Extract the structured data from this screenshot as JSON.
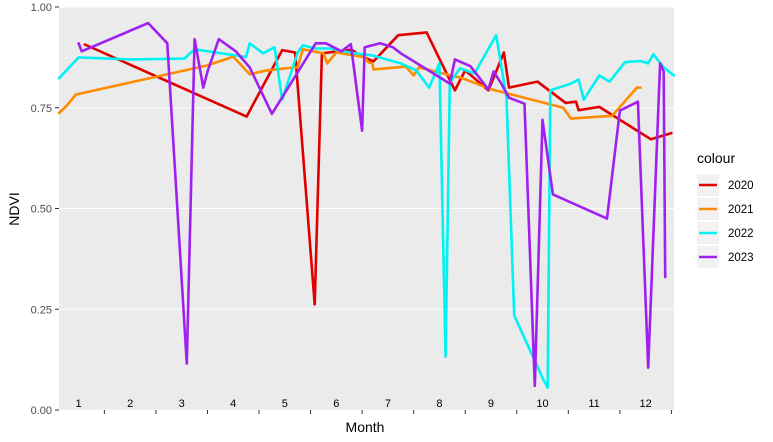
{
  "chart_data": {
    "type": "line",
    "xlabel": "Month",
    "ylabel": "NDVI",
    "ylim": [
      0,
      1
    ],
    "xlim": [
      0.62,
      12.55
    ],
    "y_ticks": [
      "0.00",
      "0.25",
      "0.50",
      "0.75",
      "1.00"
    ],
    "y_tick_values": [
      0,
      0.25,
      0.5,
      0.75,
      1.0
    ],
    "month_labels": [
      "1",
      "2",
      "3",
      "4",
      "5",
      "6",
      "7",
      "8",
      "9",
      "10",
      "11",
      "12"
    ],
    "legend_title": "colour",
    "grid": true,
    "legend_position": "right",
    "panel_background": "#ebebeb",
    "series": [
      {
        "name": "2020",
        "color": "#e00000",
        "points": [
          [
            1.12,
            0.907
          ],
          [
            4.26,
            0.728
          ],
          [
            4.95,
            0.893
          ],
          [
            5.2,
            0.887
          ],
          [
            5.58,
            0.262
          ],
          [
            5.72,
            0.885
          ],
          [
            6.3,
            0.894
          ],
          [
            6.45,
            0.88
          ],
          [
            6.72,
            0.865
          ],
          [
            7.2,
            0.93
          ],
          [
            7.75,
            0.937
          ],
          [
            8.3,
            0.793
          ],
          [
            8.5,
            0.843
          ],
          [
            8.95,
            0.793
          ],
          [
            9.25,
            0.887
          ],
          [
            9.35,
            0.8
          ],
          [
            9.9,
            0.815
          ],
          [
            10.45,
            0.762
          ],
          [
            10.65,
            0.765
          ],
          [
            10.7,
            0.744
          ],
          [
            11.1,
            0.752
          ],
          [
            12.1,
            0.672
          ],
          [
            12.5,
            0.687
          ]
        ]
      },
      {
        "name": "2021",
        "color": "#ff8c00",
        "points": [
          [
            0.62,
            0.737
          ],
          [
            0.77,
            0.755
          ],
          [
            0.95,
            0.783
          ],
          [
            3.5,
            0.855
          ],
          [
            4.0,
            0.877
          ],
          [
            4.32,
            0.833
          ],
          [
            4.62,
            0.842
          ],
          [
            5.25,
            0.851
          ],
          [
            5.35,
            0.895
          ],
          [
            5.75,
            0.885
          ],
          [
            5.82,
            0.86
          ],
          [
            6.0,
            0.887
          ],
          [
            6.55,
            0.875
          ],
          [
            6.62,
            0.863
          ],
          [
            6.7,
            0.86
          ],
          [
            6.72,
            0.845
          ],
          [
            7.35,
            0.852
          ],
          [
            7.5,
            0.83
          ],
          [
            7.6,
            0.85
          ],
          [
            8.45,
            0.823
          ],
          [
            9.0,
            0.796
          ],
          [
            10.4,
            0.75
          ],
          [
            10.55,
            0.723
          ],
          [
            11.35,
            0.73
          ],
          [
            11.83,
            0.8
          ],
          [
            11.9,
            0.8
          ]
        ]
      },
      {
        "name": "2022",
        "color": "#00f2f2",
        "points": [
          [
            0.62,
            0.823
          ],
          [
            1.0,
            0.875
          ],
          [
            2.0,
            0.87
          ],
          [
            3.05,
            0.872
          ],
          [
            3.25,
            0.895
          ],
          [
            4.25,
            0.876
          ],
          [
            4.32,
            0.91
          ],
          [
            4.58,
            0.885
          ],
          [
            4.8,
            0.9
          ],
          [
            4.95,
            0.77
          ],
          [
            5.25,
            0.887
          ],
          [
            5.35,
            0.905
          ],
          [
            5.6,
            0.897
          ],
          [
            5.88,
            0.897
          ],
          [
            6.3,
            0.886
          ],
          [
            6.7,
            0.88
          ],
          [
            7.25,
            0.86
          ],
          [
            7.55,
            0.843
          ],
          [
            7.8,
            0.8
          ],
          [
            8.0,
            0.86
          ],
          [
            8.12,
            0.133
          ],
          [
            8.2,
            0.812
          ],
          [
            8.4,
            0.848
          ],
          [
            8.68,
            0.835
          ],
          [
            9.1,
            0.93
          ],
          [
            9.3,
            0.775
          ],
          [
            9.45,
            0.235
          ],
          [
            10.0,
            0.08
          ],
          [
            10.1,
            0.055
          ],
          [
            10.15,
            0.793
          ],
          [
            10.55,
            0.81
          ],
          [
            10.7,
            0.82
          ],
          [
            10.8,
            0.77
          ],
          [
            11.1,
            0.83
          ],
          [
            11.3,
            0.815
          ],
          [
            11.6,
            0.863
          ],
          [
            11.9,
            0.866
          ],
          [
            12.05,
            0.86
          ],
          [
            12.15,
            0.883
          ],
          [
            12.35,
            0.85
          ],
          [
            12.55,
            0.83
          ]
        ]
      },
      {
        "name": "2023",
        "color": "#a020f0",
        "points": [
          [
            1.0,
            0.91
          ],
          [
            1.06,
            0.89
          ],
          [
            2.35,
            0.96
          ],
          [
            2.72,
            0.91
          ],
          [
            3.1,
            0.115
          ],
          [
            3.25,
            0.92
          ],
          [
            3.42,
            0.8
          ],
          [
            3.5,
            0.84
          ],
          [
            3.72,
            0.92
          ],
          [
            4.05,
            0.89
          ],
          [
            4.32,
            0.85
          ],
          [
            4.75,
            0.735
          ],
          [
            5.6,
            0.91
          ],
          [
            5.8,
            0.91
          ],
          [
            6.1,
            0.89
          ],
          [
            6.28,
            0.908
          ],
          [
            6.5,
            0.693
          ],
          [
            6.55,
            0.9
          ],
          [
            6.85,
            0.91
          ],
          [
            7.1,
            0.9
          ],
          [
            7.25,
            0.885
          ],
          [
            8.2,
            0.81
          ],
          [
            8.3,
            0.87
          ],
          [
            8.6,
            0.853
          ],
          [
            8.95,
            0.795
          ],
          [
            9.05,
            0.84
          ],
          [
            9.2,
            0.81
          ],
          [
            9.35,
            0.775
          ],
          [
            9.65,
            0.76
          ],
          [
            9.85,
            0.06
          ],
          [
            10.0,
            0.72
          ],
          [
            10.2,
            0.535
          ],
          [
            11.25,
            0.475
          ],
          [
            11.5,
            0.743
          ],
          [
            11.85,
            0.765
          ],
          [
            12.05,
            0.105
          ],
          [
            12.28,
            0.86
          ],
          [
            12.35,
            0.84
          ],
          [
            12.38,
            0.33
          ]
        ]
      }
    ]
  }
}
